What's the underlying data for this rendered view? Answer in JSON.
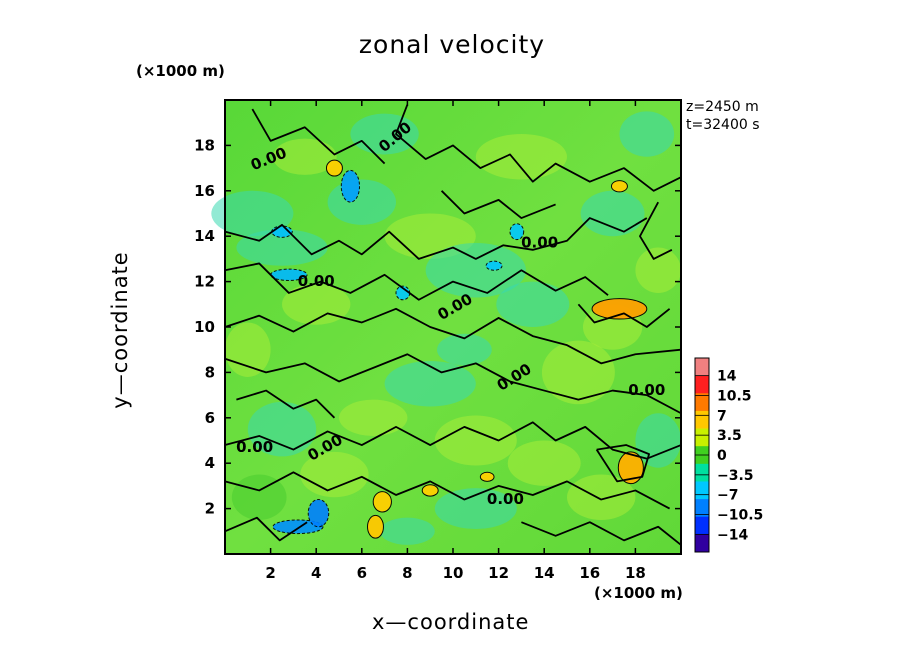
{
  "chart_data": {
    "type": "heatmap",
    "title": "zonal velocity",
    "xlabel": "x—coordinate",
    "ylabel": "y—coordinate",
    "x_unit": "(×1000 m)",
    "y_unit": "(×1000 m)",
    "xlim": [
      0,
      20
    ],
    "ylim": [
      0,
      20
    ],
    "x_ticks": [
      "2",
      "4",
      "6",
      "8",
      "10",
      "12",
      "14",
      "16",
      "18"
    ],
    "y_ticks": [
      "2",
      "4",
      "6",
      "8",
      "10",
      "12",
      "14",
      "16",
      "18"
    ],
    "annotations": [
      "z=2450  m",
      "t=32400  s"
    ],
    "colorbar": {
      "labels": [
        "14",
        "10.5",
        "7",
        "3.5",
        "0",
        "−3.5",
        "−7",
        "−10.5",
        "−14"
      ],
      "range": [
        -14,
        14
      ],
      "colors": [
        "#f08080",
        "#ff2020",
        "#ff7a00",
        "#ffc800",
        "#c8f000",
        "#40d020",
        "#00e0a0",
        "#00c8ff",
        "#0080ff",
        "#0030ff",
        "#3000a0"
      ]
    },
    "contour_labels": [
      "0.00",
      "0.00",
      "0.00",
      "0.00",
      "0.00",
      "0.00",
      "0.00",
      "0.00",
      "0.00",
      "0.00"
    ],
    "field_range": [
      -14,
      14
    ]
  }
}
